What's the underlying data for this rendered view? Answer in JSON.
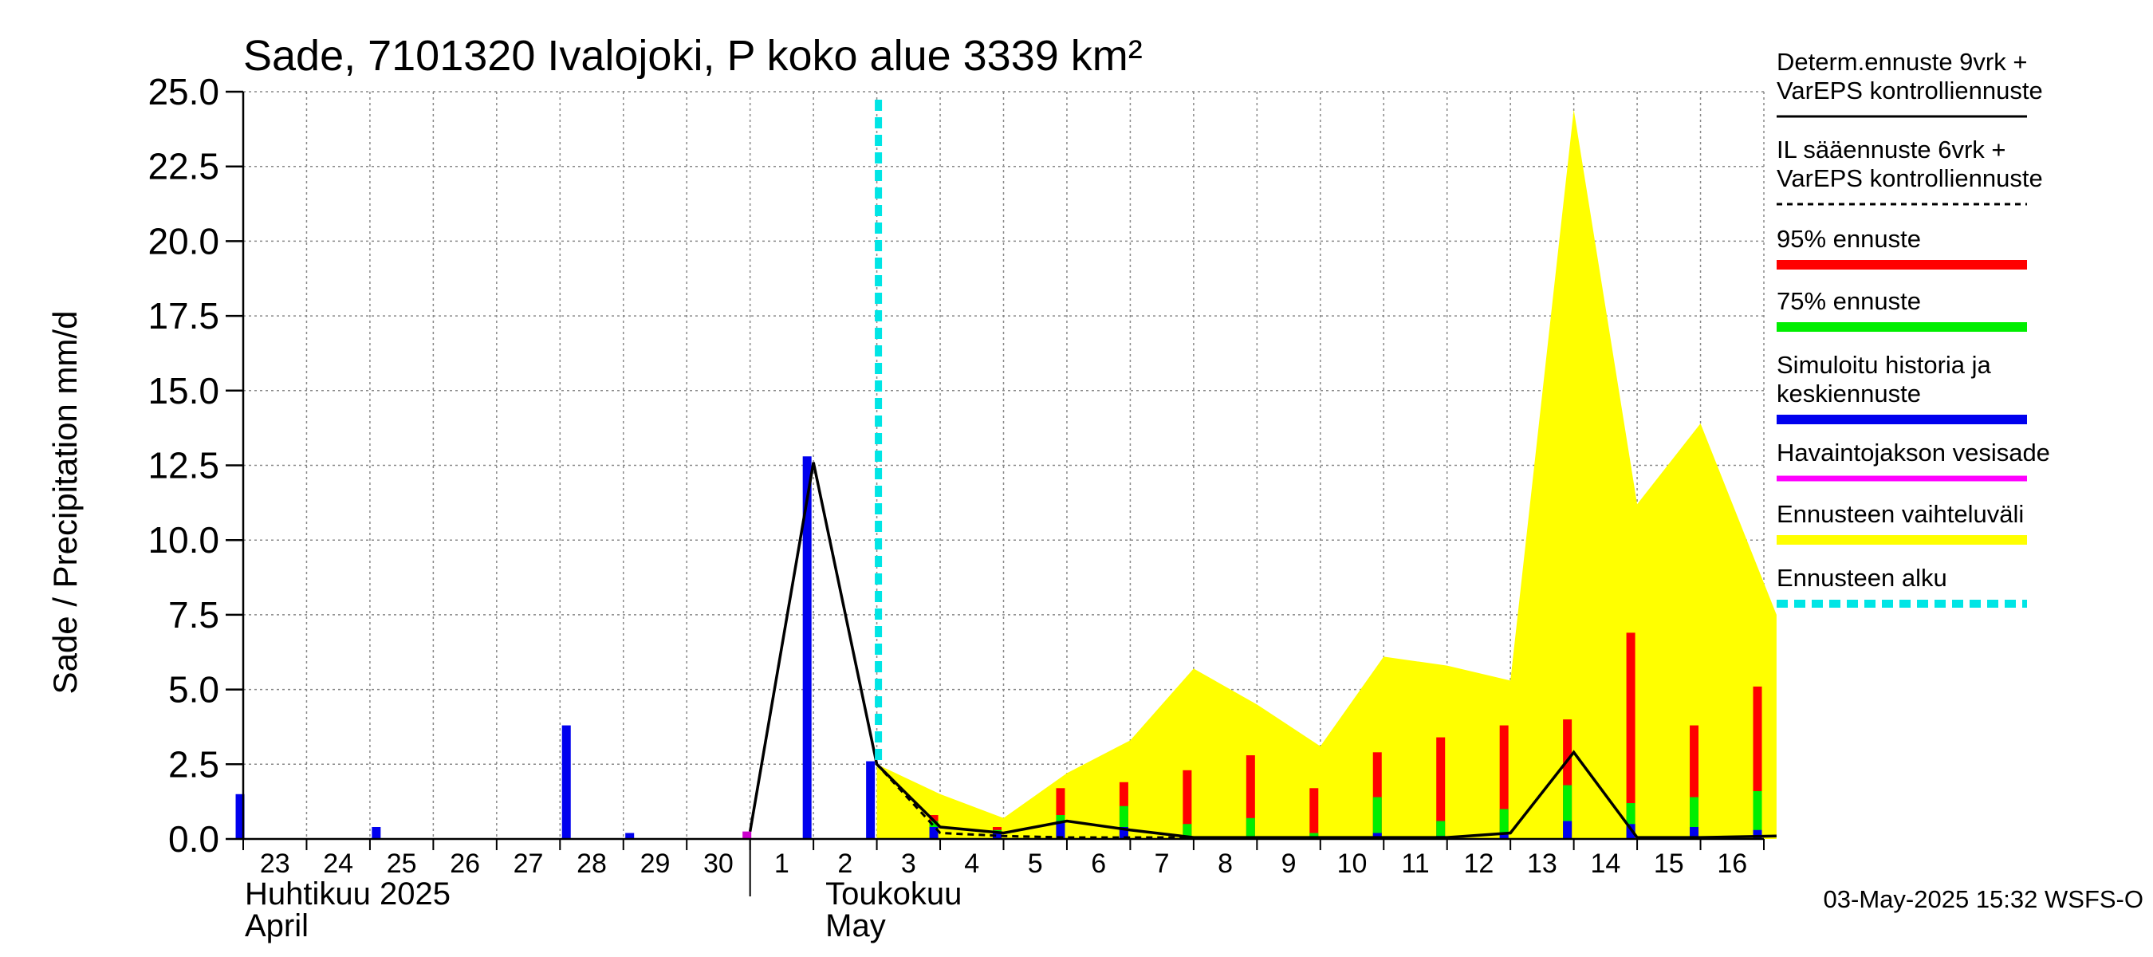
{
  "chart_data": {
    "type": "bar",
    "title": "Sade, 7101320 Ivalojoki, P koko alue 3339 km²",
    "ylabel": "Sade / Precipitation   mm/d",
    "ylim": [
      0,
      25
    ],
    "yticks": [
      "0.0",
      "2.5",
      "5.0",
      "7.5",
      "10.0",
      "12.5",
      "15.0",
      "17.5",
      "20.0",
      "22.5",
      "25.0"
    ],
    "grid": true,
    "legend_position": "right",
    "day_labels": [
      "23",
      "24",
      "25",
      "26",
      "27",
      "28",
      "29",
      "30",
      "1",
      "2",
      "3",
      "4",
      "5",
      "6",
      "7",
      "8",
      "9",
      "10",
      "11",
      "12",
      "13",
      "14",
      "15",
      "16"
    ],
    "month_labels": [
      {
        "fi": "Huhtikuu  2025",
        "en": "April",
        "day_offset": 0
      },
      {
        "fi": "Toukokuu",
        "en": "May",
        "day_offset": 9
      }
    ],
    "forecast_start_day": 10,
    "observed_precip": [
      {
        "day": -0.05,
        "value": 1.5
      },
      {
        "day": 2.1,
        "value": 0.4
      },
      {
        "day": 5.1,
        "value": 3.8
      },
      {
        "day": 6.1,
        "value": 0.2
      },
      {
        "day": 8.9,
        "value": 12.8
      },
      {
        "day": 9.9,
        "value": 2.6
      }
    ],
    "measured_precip": [
      {
        "day": 7.95,
        "value": 0.25
      }
    ],
    "forecast_bars": [
      {
        "day": 11.0,
        "p95": 0.8,
        "p75": 0.6,
        "median": 0.4
      },
      {
        "day": 12.0,
        "p95": 0.4,
        "p75": 0.3,
        "median": 0.2
      },
      {
        "day": 13.0,
        "p95": 1.7,
        "p75": 0.8,
        "median": 0.6
      },
      {
        "day": 14.0,
        "p95": 1.9,
        "p75": 1.1,
        "median": 0.4
      },
      {
        "day": 15.0,
        "p95": 2.3,
        "p75": 0.5,
        "median": 0.05
      },
      {
        "day": 16.0,
        "p95": 2.8,
        "p75": 0.7,
        "median": 0.05
      },
      {
        "day": 17.0,
        "p95": 1.7,
        "p75": 0.2,
        "median": 0.05
      },
      {
        "day": 18.0,
        "p95": 2.9,
        "p75": 1.4,
        "median": 0.2
      },
      {
        "day": 19.0,
        "p95": 3.4,
        "p75": 0.6,
        "median": 0.1
      },
      {
        "day": 20.0,
        "p95": 3.8,
        "p75": 1.0,
        "median": 0.2
      },
      {
        "day": 21.0,
        "p95": 4.0,
        "p75": 1.8,
        "median": 0.6
      },
      {
        "day": 22.0,
        "p95": 6.9,
        "p75": 1.2,
        "median": 0.5
      },
      {
        "day": 23.0,
        "p95": 3.8,
        "p75": 1.4,
        "median": 0.4
      },
      {
        "day": 24.0,
        "p95": 5.1,
        "p75": 1.6,
        "median": 0.3
      }
    ],
    "forecast_range": {
      "days": [
        10,
        11,
        12,
        13,
        14,
        15,
        16,
        17,
        18,
        19,
        20,
        21,
        22,
        23,
        24.2
      ],
      "upper": [
        2.5,
        1.5,
        0.7,
        2.2,
        3.3,
        5.7,
        4.5,
        3.1,
        6.1,
        5.8,
        5.3,
        24.4,
        11.2,
        13.9,
        7.5
      ],
      "lower": [
        0,
        0,
        0,
        0,
        0,
        0,
        0,
        0,
        0,
        0,
        0,
        0,
        0,
        0,
        0
      ]
    },
    "deterministic_line": {
      "days": [
        8,
        9,
        10,
        11,
        12,
        13,
        14,
        15,
        16,
        17,
        18,
        19,
        20,
        21,
        22,
        23,
        24.2
      ],
      "values": [
        0.25,
        12.6,
        2.5,
        0.4,
        0.2,
        0.6,
        0.3,
        0.05,
        0.05,
        0.05,
        0.05,
        0.05,
        0.2,
        2.9,
        0.05,
        0.05,
        0.1
      ]
    },
    "il_line": {
      "days": [
        8,
        9,
        10,
        11,
        12,
        13,
        14,
        15,
        16,
        17
      ],
      "values": [
        0.25,
        12.6,
        2.5,
        0.2,
        0.1,
        0.05,
        0.05,
        0.05,
        0.05,
        0.05
      ]
    },
    "legend": [
      {
        "lines": [
          "Determ.ennuste 9vrk +",
          "VarEPS kontrolliennuste"
        ],
        "style": "solid",
        "color": "#000000"
      },
      {
        "lines": [
          "IL sääennuste 6vrk  +",
          "  VarEPS kontrolliennuste"
        ],
        "style": "dashed",
        "color": "#000000"
      },
      {
        "lines": [
          "95% ennuste"
        ],
        "style": "thick",
        "color": "#ff0000"
      },
      {
        "lines": [
          "75% ennuste"
        ],
        "style": "thick",
        "color": "#00ee00"
      },
      {
        "lines": [
          "Simuloitu historia ja",
          "keskiennuste"
        ],
        "style": "thick",
        "color": "#0000ee"
      },
      {
        "lines": [
          "Havaintojakson vesisade"
        ],
        "style": "medium",
        "color": "#ff00ff"
      },
      {
        "lines": [
          "Ennusteen vaihteluväli"
        ],
        "style": "thick",
        "color": "#ffff00"
      },
      {
        "lines": [
          "Ennusteen alku"
        ],
        "style": "dotted",
        "color": "#00e5e5"
      }
    ],
    "colors": {
      "p95": "#ff0000",
      "p75": "#00ee00",
      "median": "#0000ee",
      "measured": "#cc00cc",
      "range": "#ffff00",
      "forecast_start": "#00e5e5",
      "grid": "#888888"
    }
  },
  "timestamp": "03-May-2025 15:32 WSFS-O"
}
